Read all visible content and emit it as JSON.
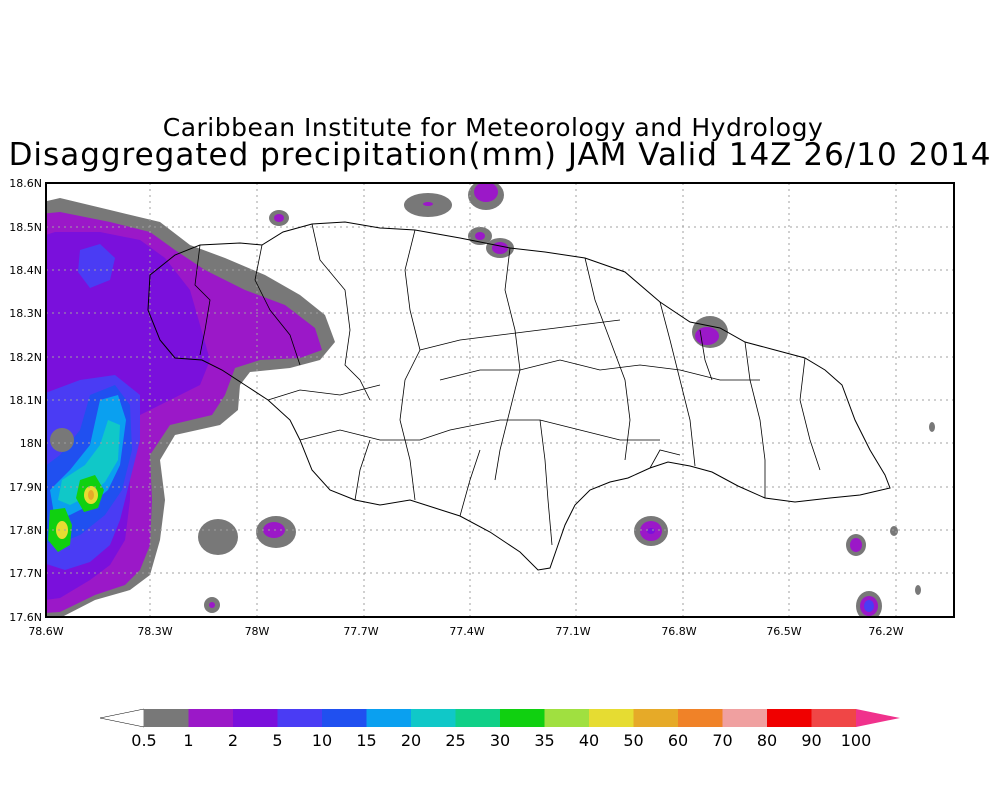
{
  "title_line1": "Caribbean Institute for Meteorology and Hydrology",
  "title_line2": "Disaggregated precipitation(mm) JAM Valid 14Z 26/10 2014",
  "y_ticks": [
    "18.6N",
    "18.5N",
    "18.4N",
    "18.3N",
    "18.2N",
    "18.1N",
    "18N",
    "17.9N",
    "17.8N",
    "17.7N",
    "17.6N"
  ],
  "x_ticks": [
    "78.6W",
    "78.3W",
    "78W",
    "77.7W",
    "77.4W",
    "77.1W",
    "76.8W",
    "76.5W",
    "76.2W"
  ],
  "colorbar": {
    "labels": [
      "0.5",
      "1",
      "2",
      "5",
      "10",
      "15",
      "20",
      "25",
      "30",
      "35",
      "40",
      "50",
      "60",
      "70",
      "80",
      "90",
      "100"
    ],
    "colors": [
      "#787878",
      "#9b18c8",
      "#7a10dc",
      "#4a3cf4",
      "#2050f0",
      "#0aa0f0",
      "#10c8c8",
      "#10d088",
      "#10d010",
      "#a0e040",
      "#e6dc32",
      "#e6aa28",
      "#f08228",
      "#f0a0a0",
      "#f00000",
      "#f04646",
      "#f0328c"
    ]
  },
  "precip_colors": {
    "gray": "#787878",
    "light_purple": "#9b18c8",
    "purple": "#7a10dc",
    "violet": "#4a3cf4",
    "blue": "#2050f0",
    "light_blue": "#0aa0f0",
    "teal": "#10c8c8",
    "green_teal": "#10d088",
    "green": "#10d010",
    "lime": "#a0e040",
    "yellow": "#e6dc32",
    "orange": "#e6aa28"
  }
}
